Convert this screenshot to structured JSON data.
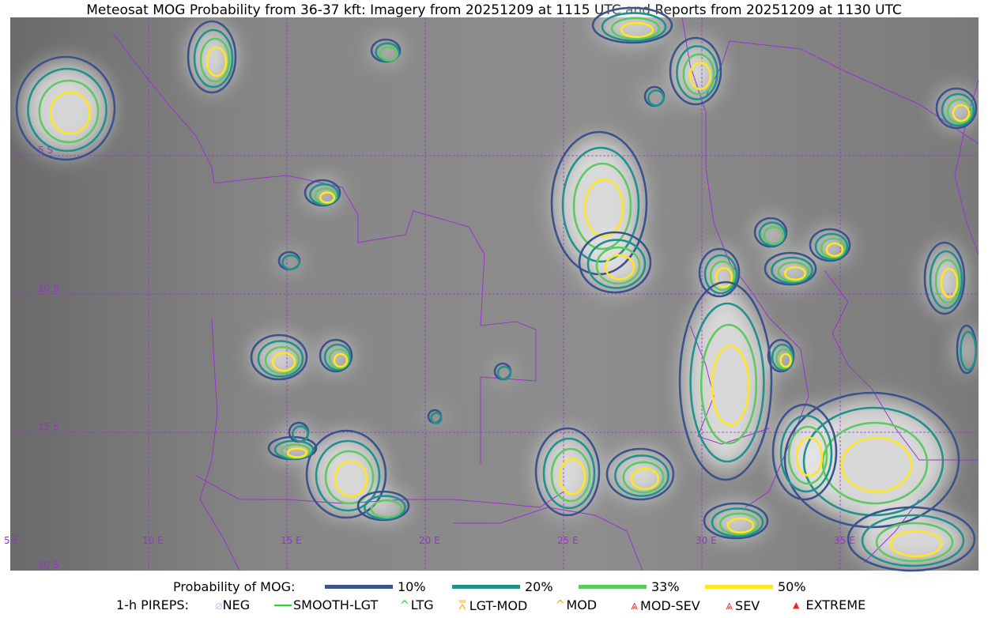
{
  "title": "Meteosat MOG Probability from 36-37 kft: Imagery from 20251209 at 1115 UTC and Reports from 20251209 at 1130 UTC",
  "map": {
    "lon_labels": [
      "5 E",
      "10 E",
      "15 E",
      "20 E",
      "25 E",
      "30 E",
      "35 E"
    ],
    "lat_labels": [
      "5 S",
      "10 S",
      "15 S",
      "20 S"
    ],
    "gridline_color": "#9933cc",
    "border_color": "#9933cc"
  },
  "legend": {
    "probability_title": "Probability of MOG:",
    "probability_levels": [
      {
        "label": "10%",
        "color": "#3b528b"
      },
      {
        "label": "20%",
        "color": "#21918c"
      },
      {
        "label": "33%",
        "color": "#5ec962"
      },
      {
        "label": "50%",
        "color": "#fde725"
      }
    ],
    "pireps_title": "1-h PIREPS:",
    "pireps": [
      {
        "label": "NEG",
        "icon": "neg-symbol-icon",
        "color": "#c8c8ff"
      },
      {
        "label": "SMOOTH-LGT",
        "icon": "smooth-lgt-line-icon",
        "color": "#22dd22"
      },
      {
        "label": "LTG",
        "icon": "ltg-caret-icon",
        "color": "#00dd00"
      },
      {
        "label": "LGT-MOD",
        "icon": "lgt-mod-caret-icon",
        "color": "#ffb020"
      },
      {
        "label": "MOD",
        "icon": "mod-caret-icon",
        "color": "#ffb020"
      },
      {
        "label": "MOD-SEV",
        "icon": "mod-sev-caret-icon",
        "color": "#ff3030"
      },
      {
        "label": "SEV",
        "icon": "sev-caret-icon",
        "color": "#ff3030"
      },
      {
        "label": "EXTREME",
        "icon": "extreme-triangle-icon",
        "color": "#ff2020"
      }
    ]
  }
}
